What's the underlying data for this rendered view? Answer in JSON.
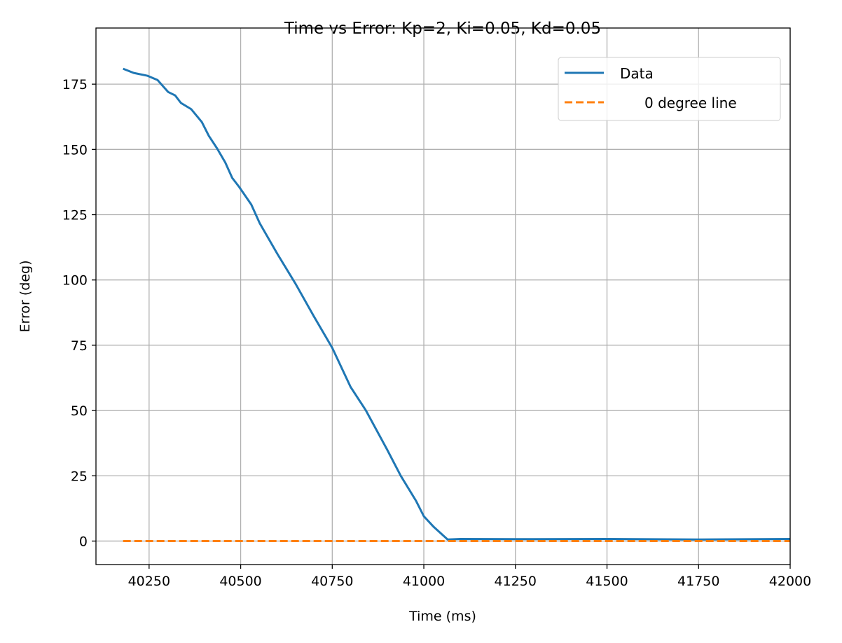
{
  "chart_data": {
    "type": "line",
    "title": "Time vs Error: Kp=2, Ki=0.05, Kd=0.05",
    "xlabel": "Time (ms)",
    "ylabel": "Error (deg)",
    "xlim": [
      40105,
      42000
    ],
    "ylim": [
      -9,
      196.5
    ],
    "xticks": [
      40250,
      40500,
      40750,
      41000,
      41250,
      41500,
      41750,
      42000
    ],
    "yticks": [
      0,
      25,
      50,
      75,
      100,
      125,
      150,
      175
    ],
    "grid": true,
    "legend_position": "top-right",
    "series": [
      {
        "name": "Data",
        "style": "solid",
        "color": "#1f77b4",
        "x": [
          40179,
          40208,
          40246,
          40273,
          40302,
          40321,
          40337,
          40365,
          40394,
          40413,
          40436,
          40458,
          40477,
          40496,
          40529,
          40552,
          40600,
          40650,
          40700,
          40750,
          40800,
          40842,
          40900,
          40937,
          40979,
          41000,
          41027,
          41065,
          41100,
          41250,
          41500,
          41750,
          42000
        ],
        "y": [
          180.9,
          179.3,
          178.2,
          176.6,
          172,
          170.7,
          167.8,
          165.4,
          160.5,
          155.2,
          150.3,
          145,
          139.1,
          135.6,
          128.9,
          121.7,
          110,
          98.5,
          86,
          74,
          59,
          50,
          35,
          25,
          15.3,
          9.5,
          5.4,
          0.6,
          0.8,
          0.7,
          0.8,
          0.6,
          0.8
        ]
      },
      {
        "name": "0 degree line",
        "style": "dashed",
        "color": "#ff7f0e",
        "x": [
          40179,
          42000
        ],
        "y": [
          0,
          0
        ]
      }
    ]
  }
}
